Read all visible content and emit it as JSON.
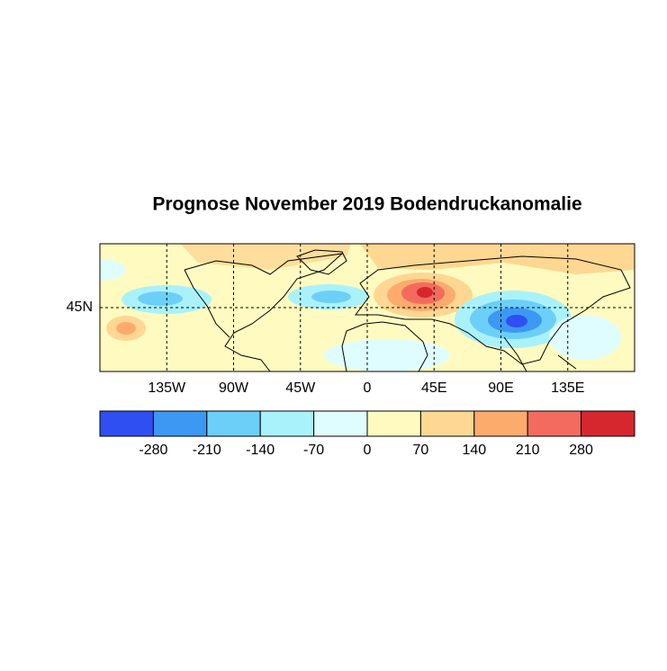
{
  "chart_data": {
    "type": "map",
    "title": "Prognose November 2019 Bodendruckanomalie",
    "xlim": [
      -180,
      180
    ],
    "xticks": [
      {
        "value": -135,
        "label": "135W"
      },
      {
        "value": -90,
        "label": "90W"
      },
      {
        "value": -45,
        "label": "45W"
      },
      0,
      {
        "value": 45,
        "label": "45E"
      },
      {
        "value": 90,
        "label": "90E"
      },
      {
        "value": 135,
        "label": "135E"
      }
    ],
    "ylim": [
      0,
      90
    ],
    "yticks": [
      {
        "value": 45,
        "label": "45N"
      }
    ],
    "grid": true,
    "colorbar": {
      "levels": [
        -280,
        -210,
        -140,
        -70,
        0,
        70,
        140,
        210,
        280
      ],
      "colors": [
        "#2f4ff2",
        "#3d98f3",
        "#6ccff8",
        "#a9f2fc",
        "#dffdff",
        "#fffbc0",
        "#fed792",
        "#fdab6c",
        "#f36b5e",
        "#d6272f"
      ]
    }
  }
}
